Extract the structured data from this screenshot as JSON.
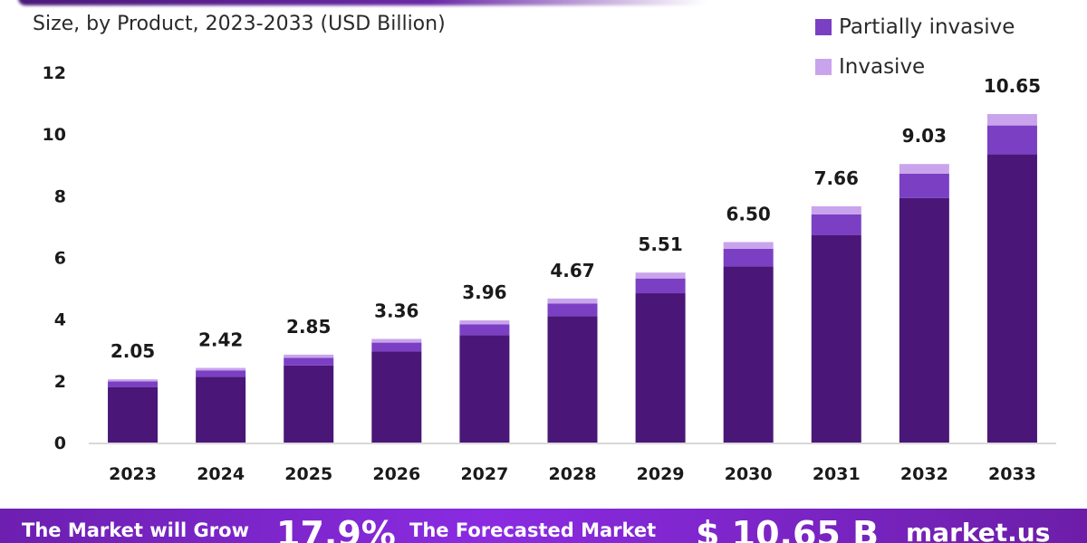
{
  "header": {
    "subtitle": "Size, by Product, 2023-2033 (USD Billion)"
  },
  "legend": [
    {
      "label": "Partially invasive",
      "color": "#7b3fc4"
    },
    {
      "label": "Invasive",
      "color": "#c9a4ec"
    }
  ],
  "colors": {
    "base": "#4a1677",
    "partially_invasive": "#7b3fc4",
    "invasive": "#c9a4ec",
    "axis": "#cccccc"
  },
  "chart_data": {
    "type": "bar",
    "stacked": true,
    "categories": [
      "2023",
      "2024",
      "2025",
      "2026",
      "2027",
      "2028",
      "2029",
      "2030",
      "2031",
      "2032",
      "2033"
    ],
    "series": [
      {
        "values": [
          1.8,
          2.13,
          2.5,
          2.95,
          3.48,
          4.1,
          4.84,
          5.71,
          6.73,
          7.93,
          9.35
        ]
      },
      {
        "name": "Partially invasive",
        "values": [
          0.18,
          0.21,
          0.25,
          0.29,
          0.35,
          0.41,
          0.48,
          0.57,
          0.67,
          0.79,
          0.93
        ]
      },
      {
        "name": "Invasive",
        "values": [
          0.07,
          0.08,
          0.1,
          0.12,
          0.13,
          0.16,
          0.19,
          0.22,
          0.26,
          0.31,
          0.37
        ]
      }
    ],
    "totals": [
      "2.05",
      "2.42",
      "2.85",
      "3.36",
      "3.96",
      "4.67",
      "5.51",
      "6.50",
      "7.66",
      "9.03",
      "10.65"
    ],
    "yticks": [
      "0",
      "2",
      "4",
      "6",
      "8",
      "10",
      "12"
    ],
    "ylim": [
      0,
      12
    ],
    "legend_position": "top-right"
  },
  "banner": {
    "grow_text": "The Market will Grow",
    "cagr": "17.9%",
    "forecast_text": "The Forecasted Market",
    "value": "$ 10.65 B",
    "brand": "market.us"
  }
}
